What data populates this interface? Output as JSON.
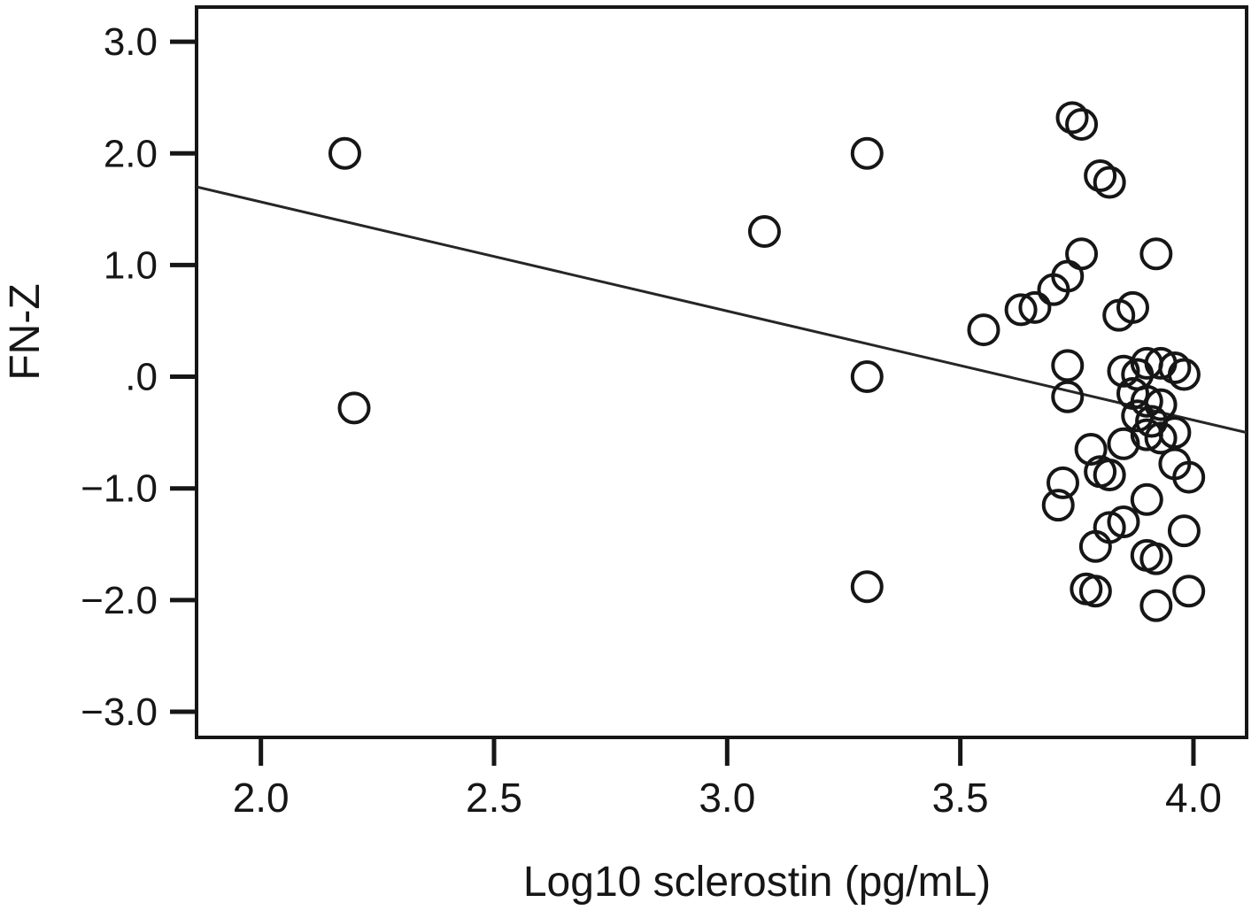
{
  "figure": {
    "background": "#ffffff",
    "ink_color": "#161616",
    "line_color": "#262626"
  },
  "chart_data": {
    "type": "scatter",
    "title": "",
    "xlabel": "Log10 sclerostin (pg/mL)",
    "ylabel": "FN-Z",
    "xlim": [
      1.862,
      4.114
    ],
    "ylim": [
      -3.23,
      3.31
    ],
    "grid": false,
    "legend": "none",
    "marker": "open-circle",
    "xticks": [
      {
        "value": 2.0,
        "label": "2.0"
      },
      {
        "value": 2.5,
        "label": "2.5"
      },
      {
        "value": 3.0,
        "label": "3.0"
      },
      {
        "value": 3.5,
        "label": "3.5"
      },
      {
        "value": 4.0,
        "label": "4.0"
      }
    ],
    "yticks": [
      {
        "value": 3.0,
        "label": "3.0"
      },
      {
        "value": 2.0,
        "label": "2.0"
      },
      {
        "value": 1.0,
        "label": "1.0"
      },
      {
        "value": 0.0,
        "label": ".0"
      },
      {
        "value": -1.0,
        "label": "−1.0"
      },
      {
        "value": -2.0,
        "label": "−2.0"
      },
      {
        "value": -3.0,
        "label": "−3.0"
      }
    ],
    "points": [
      [
        2.18,
        2.0
      ],
      [
        2.2,
        -0.28
      ],
      [
        3.08,
        1.3
      ],
      [
        3.3,
        2.0
      ],
      [
        3.3,
        0.0
      ],
      [
        3.3,
        -1.88
      ],
      [
        3.55,
        0.42
      ],
      [
        3.63,
        0.6
      ],
      [
        3.66,
        0.62
      ],
      [
        3.7,
        0.78
      ],
      [
        3.73,
        0.9
      ],
      [
        3.74,
        2.32
      ],
      [
        3.76,
        2.26
      ],
      [
        3.8,
        1.8
      ],
      [
        3.82,
        1.74
      ],
      [
        3.76,
        1.1
      ],
      [
        3.92,
        1.1
      ],
      [
        3.84,
        0.55
      ],
      [
        3.87,
        0.62
      ],
      [
        3.73,
        0.1
      ],
      [
        3.73,
        -0.18
      ],
      [
        3.85,
        0.05
      ],
      [
        3.88,
        0.02
      ],
      [
        3.9,
        0.12
      ],
      [
        3.93,
        0.12
      ],
      [
        3.96,
        0.08
      ],
      [
        3.98,
        0.02
      ],
      [
        3.87,
        -0.15
      ],
      [
        3.9,
        -0.22
      ],
      [
        3.93,
        -0.25
      ],
      [
        3.88,
        -0.35
      ],
      [
        3.91,
        -0.4
      ],
      [
        3.9,
        -0.52
      ],
      [
        3.93,
        -0.55
      ],
      [
        3.96,
        -0.5
      ],
      [
        3.85,
        -0.6
      ],
      [
        3.78,
        -0.65
      ],
      [
        3.8,
        -0.85
      ],
      [
        3.82,
        -0.88
      ],
      [
        3.72,
        -0.95
      ],
      [
        3.71,
        -1.15
      ],
      [
        3.96,
        -0.78
      ],
      [
        3.99,
        -0.9
      ],
      [
        3.9,
        -1.1
      ],
      [
        3.82,
        -1.35
      ],
      [
        3.85,
        -1.3
      ],
      [
        3.79,
        -1.52
      ],
      [
        3.9,
        -1.6
      ],
      [
        3.92,
        -1.63
      ],
      [
        3.98,
        -1.38
      ],
      [
        3.77,
        -1.9
      ],
      [
        3.79,
        -1.92
      ],
      [
        3.92,
        -2.05
      ],
      [
        3.99,
        -1.92
      ]
    ],
    "trendline": {
      "x1": 1.862,
      "y1": 1.7,
      "x2": 4.114,
      "y2": -0.5
    }
  }
}
